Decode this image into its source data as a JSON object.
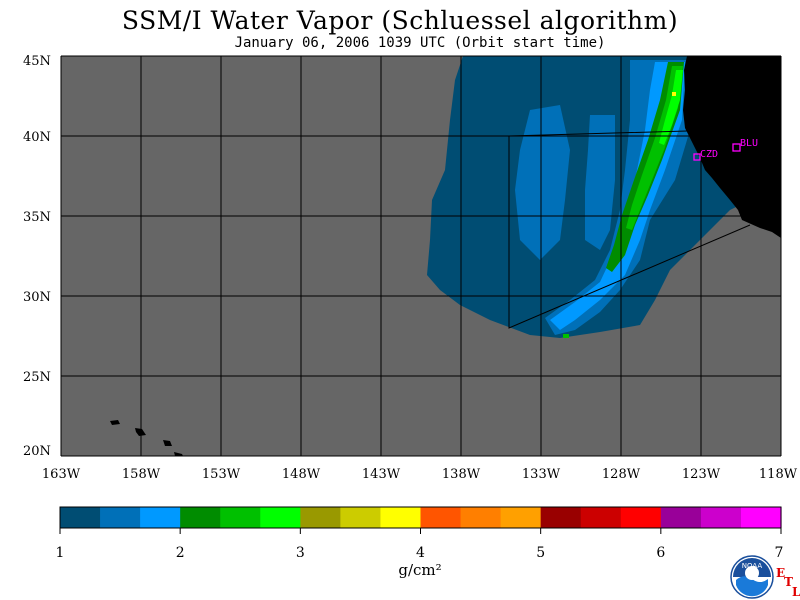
{
  "title": "SSM/I Water Vapor (Schluessel algorithm)",
  "subtitle": "January 06, 2006  1039 UTC  (Orbit start time)",
  "map": {
    "lat_labels": [
      "45N",
      "40N",
      "35N",
      "30N",
      "25N",
      "20N"
    ],
    "lon_labels": [
      "163W",
      "158W",
      "153W",
      "148W",
      "143W",
      "138W",
      "133W",
      "128W",
      "123W",
      "118W"
    ],
    "stations": [
      {
        "name": "CZD"
      },
      {
        "name": "BLU"
      }
    ],
    "colors": {
      "background": "#666666",
      "land": "#000000",
      "station": "#ff00ff"
    }
  },
  "colorbar": {
    "ticks": [
      "1",
      "2",
      "3",
      "4",
      "5",
      "6",
      "7"
    ],
    "units": "g/cm²",
    "bins": [
      "#004d73",
      "#0070b8",
      "#0099ff",
      "#008c00",
      "#00c000",
      "#00ff00",
      "#999900",
      "#cccc00",
      "#ffff00",
      "#ff5500",
      "#ff7f00",
      "#ffa000",
      "#990000",
      "#cc0000",
      "#ff0000",
      "#990099",
      "#cc00cc",
      "#ff00ff"
    ]
  },
  "logo": {
    "text": "NOAA",
    "etl": [
      "E",
      "T",
      "L"
    ]
  }
}
